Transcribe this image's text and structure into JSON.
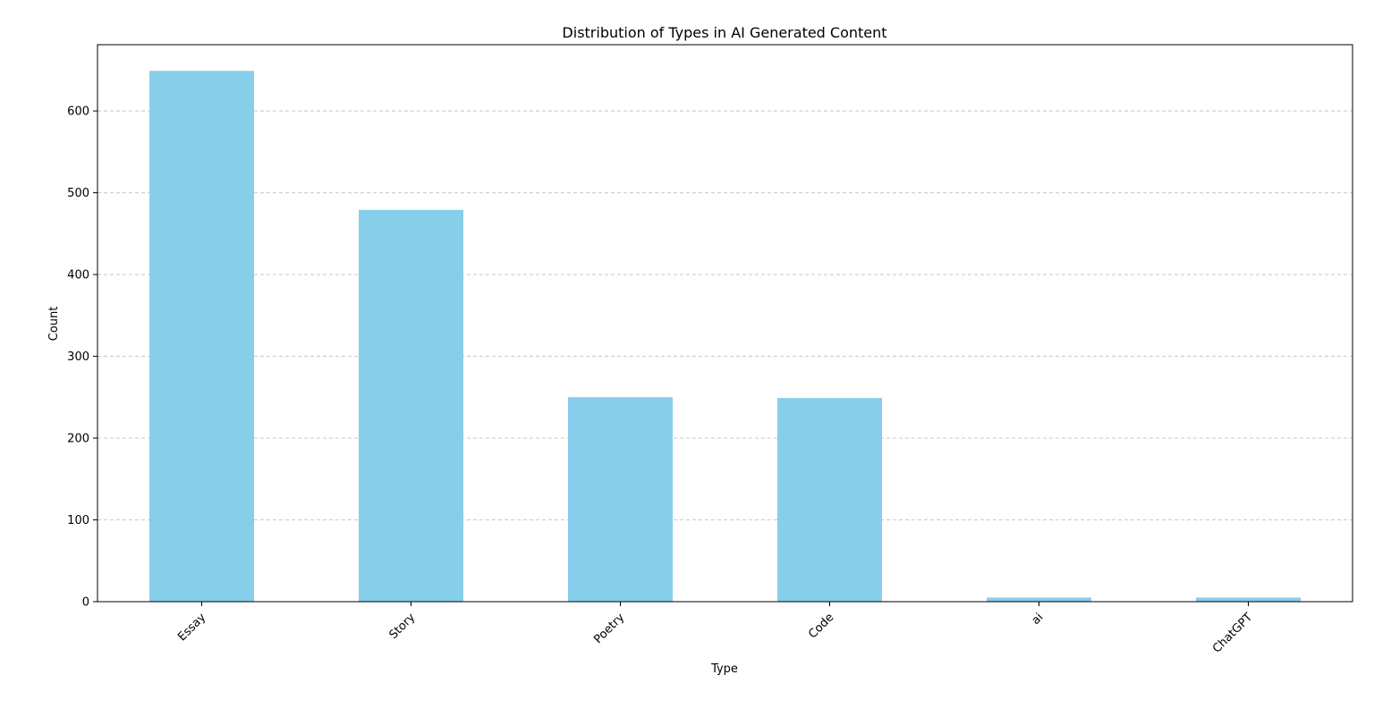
{
  "chart_data": {
    "type": "bar",
    "title": "Distribution of Types in AI Generated Content",
    "xlabel": "Type",
    "ylabel": "Count",
    "categories": [
      "Essay",
      "Story",
      "Poetry",
      "Code",
      "ai",
      "ChatGPT"
    ],
    "values": [
      649,
      479,
      250,
      249,
      5,
      5
    ],
    "ylim": [
      0,
      681
    ],
    "yticks": [
      0,
      100,
      200,
      300,
      400,
      500,
      600
    ],
    "grid": "y-axis dashed",
    "bar_color": "#87ceeb",
    "grid_color": "#c8c8c8",
    "x_tick_rotation_deg": 45
  }
}
